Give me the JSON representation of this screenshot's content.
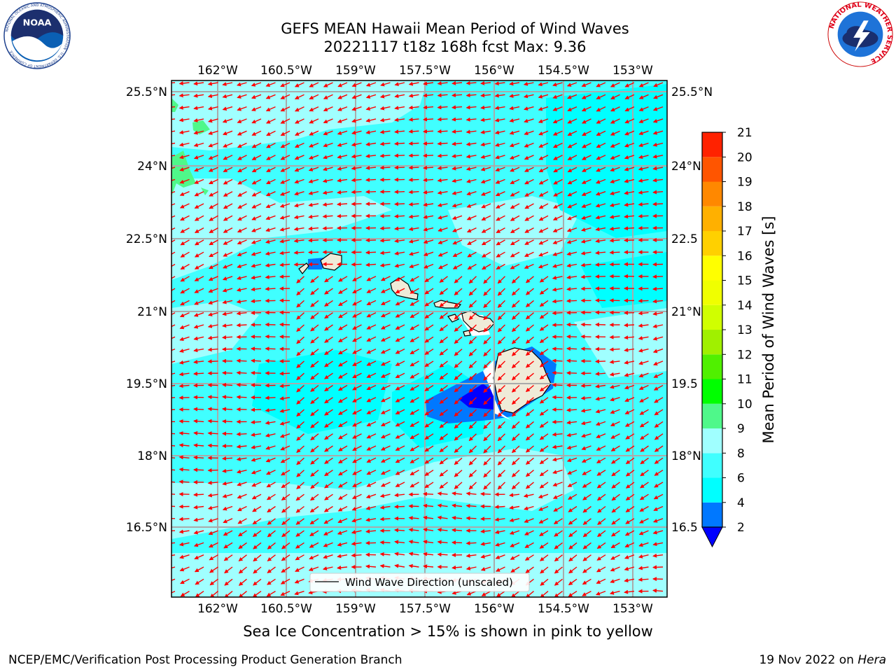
{
  "title": {
    "line1": "GEFS MEAN Hawaii Mean Period of Wind Waves",
    "line2": "20221117 t18z 168h fcst   Max: 9.36"
  },
  "logos": {
    "left": "NOAA",
    "left_ring_text": "NATIONAL OCEANIC AND ATMOSPHERIC ADMINISTRATION · U.S. DEPARTMENT OF COMMERCE",
    "right_ring_text": "NATIONAL WEATHER SERVICE"
  },
  "map": {
    "lon_labels": [
      "162°W",
      "160.5°W",
      "159°W",
      "157.5°W",
      "156°W",
      "154.5°W",
      "153°W"
    ],
    "lat_labels_left": [
      "25.5°N",
      "24°N",
      "22.5°N",
      "21°N",
      "19.5°N",
      "18°N",
      "16.5°N"
    ],
    "lat_labels_right": [
      "25.5°N",
      "24°N",
      "22.5",
      "21°N",
      "19.5",
      "18°N",
      "16.5"
    ],
    "legend_label": "Wind Wave Direction (unscaled)",
    "ocean_color": "#00ffff",
    "arrow_color": "#ff0000",
    "land_color": "#efebd8"
  },
  "colorbar": {
    "label": "Mean Period of Wind Waves [s]",
    "ticks": [
      "2",
      "4",
      "6",
      "8",
      "9",
      "10",
      "11",
      "12",
      "13",
      "14",
      "15",
      "16",
      "17",
      "18",
      "19",
      "20",
      "21"
    ],
    "colors": [
      "#0078ff",
      "#00ffff",
      "#40ffff",
      "#a0ffff",
      "#4ff88a",
      "#00ff00",
      "#50f000",
      "#a0f000",
      "#d0ff00",
      "#f0ff00",
      "#ffff00",
      "#ffd000",
      "#ffb000",
      "#ff8800",
      "#ff5500",
      "#ff2200",
      "#ff0000"
    ],
    "extend_color": "#0000ff"
  },
  "footer": {
    "caption": "Sea Ice Concentration > 15% is shown in pink to yellow",
    "left": "NCEP/EMC/Verification Post Processing Product Generation Branch",
    "right_prefix": "19 Nov 2022 on ",
    "right_host": "Hera"
  }
}
